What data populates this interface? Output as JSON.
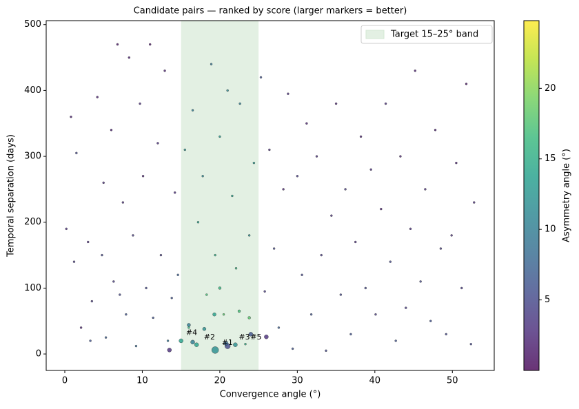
{
  "chart_data": {
    "type": "scatter",
    "title": "Candidate pairs — ranked by score (larger markers = better)",
    "xlabel": "Convergence angle (°)",
    "ylabel": "Temporal separation (days)",
    "xlim": [
      -2.4,
      55.4
    ],
    "xticks": [
      0,
      10,
      20,
      30,
      40,
      50
    ],
    "ylim": [
      -25,
      506
    ],
    "yticks": [
      0,
      100,
      200,
      300,
      400,
      500
    ],
    "band": {
      "x": [
        15,
        25
      ],
      "color": "#c8e2c8",
      "label": "Target 15–25° band"
    },
    "legend": "upper right",
    "colorbar": {
      "label": "Asymmetry angle (°)",
      "clim": [
        0,
        24.8
      ],
      "ticks": [
        5,
        10,
        15,
        20
      ],
      "cmap": "viridis"
    },
    "series": [
      {
        "marker_size": 1.5,
        "x": [
          0.2,
          0.8,
          1.2,
          1.5,
          2.1,
          3.0,
          3.3,
          3.5,
          4.2,
          4.8,
          5.0,
          5.3,
          6.0,
          6.3,
          6.8,
          7.1,
          7.5,
          7.9,
          8.3,
          8.8,
          9.2,
          9.7,
          10.1,
          10.5,
          11.0,
          11.4,
          12.0,
          12.4,
          12.9,
          13.3,
          13.8,
          14.2,
          14.6,
          15.5,
          16.0,
          16.5,
          17.2,
          17.8,
          18.3,
          18.9,
          19.4,
          20.0,
          20.5,
          21.0,
          21.6,
          22.1,
          22.6,
          23.3,
          23.8,
          24.4,
          25.3,
          25.8,
          26.4,
          27.0,
          27.6,
          28.2,
          28.8,
          29.4,
          30.0,
          30.6,
          31.2,
          31.8,
          32.5,
          33.1,
          33.7,
          34.4,
          35.0,
          35.6,
          36.2,
          36.9,
          37.5,
          38.2,
          38.8,
          39.5,
          40.1,
          40.8,
          41.4,
          42.0,
          42.7,
          43.3,
          44.0,
          44.6,
          45.2,
          45.9,
          46.5,
          47.2,
          47.8,
          48.5,
          49.2,
          49.9,
          50.5,
          51.2,
          51.8,
          52.4,
          52.8
        ],
        "y": [
          190,
          360,
          140,
          305,
          40,
          170,
          20,
          80,
          390,
          150,
          260,
          25,
          340,
          110,
          470,
          90,
          230,
          60,
          450,
          180,
          12,
          380,
          270,
          100,
          470,
          55,
          320,
          150,
          430,
          20,
          85,
          245,
          120,
          310,
          40,
          370,
          200,
          270,
          90,
          440,
          150,
          330,
          60,
          400,
          240,
          130,
          380,
          15,
          180,
          290,
          420,
          95,
          310,
          160,
          40,
          250,
          395,
          8,
          270,
          120,
          350,
          60,
          300,
          150,
          5,
          210,
          380,
          90,
          250,
          30,
          170,
          330,
          100,
          280,
          60,
          220,
          380,
          140,
          20,
          300,
          70,
          190,
          430,
          110,
          250,
          50,
          340,
          160,
          30,
          180,
          290,
          100,
          410,
          15,
          230
        ],
        "c": [
          3,
          2,
          4,
          5,
          2,
          3,
          6,
          4,
          2,
          5,
          3,
          7,
          2,
          4,
          1,
          5,
          3,
          6,
          2,
          4,
          8,
          3,
          2,
          5,
          1,
          6,
          3,
          4,
          2,
          9,
          6,
          3,
          7,
          12,
          16,
          10,
          14,
          11,
          17,
          9,
          15,
          13,
          18,
          11,
          14,
          16,
          10,
          15,
          12,
          13,
          6,
          4,
          3,
          5,
          7,
          2,
          3,
          6,
          4,
          5,
          2,
          6,
          3,
          4,
          5,
          3,
          2,
          5,
          4,
          6,
          3,
          2,
          5,
          3,
          4,
          2,
          3,
          5,
          6,
          2,
          4,
          3,
          2,
          5,
          3,
          6,
          2,
          4,
          5,
          3,
          2,
          4,
          1,
          5,
          3
        ]
      },
      {
        "x": [
          19.4,
          21.0,
          20.8,
          17.0,
          22.0,
          15.0,
          16.5,
          24.0,
          13.5,
          26.0,
          18.0,
          19.3,
          20.0,
          22.5,
          23.8,
          16.0
        ],
        "y": [
          6,
          12,
          16,
          14,
          14,
          20,
          18,
          30,
          6,
          26,
          38,
          60,
          100,
          65,
          55,
          44
        ],
        "c": [
          12,
          5,
          8,
          14,
          12,
          14,
          10,
          6,
          3,
          3,
          12,
          14,
          16,
          17,
          18,
          10
        ],
        "sizes": [
          5,
          4,
          3,
          3,
          3,
          3,
          3,
          3,
          3,
          3,
          2.5,
          2.5,
          2,
          2,
          2,
          2.5
        ]
      }
    ],
    "annotations": [
      {
        "text": "#4",
        "x": 16.0,
        "y": 32
      },
      {
        "text": "#2",
        "x": 18.3,
        "y": 25
      },
      {
        "text": "#1",
        "x": 20.6,
        "y": 17
      },
      {
        "text": "#3",
        "x": 22.8,
        "y": 25
      },
      {
        "text": "#5",
        "x": 24.3,
        "y": 25
      }
    ]
  }
}
